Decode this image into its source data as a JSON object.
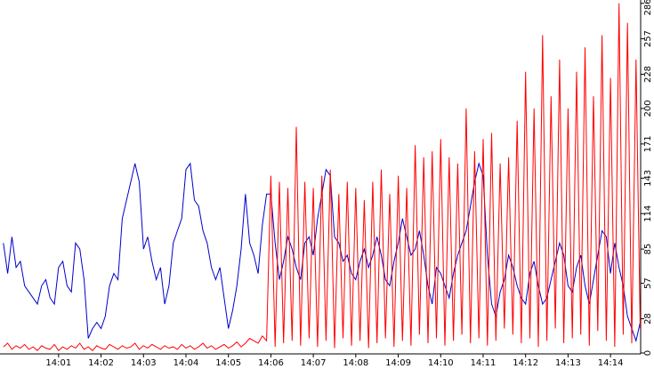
{
  "chart_data": {
    "type": "line",
    "x": [
      -0.3,
      -0.2,
      -0.1,
      0,
      0.1,
      0.2,
      0.3,
      0.4,
      0.5,
      0.6,
      0.7,
      0.8,
      0.9,
      1,
      1.1,
      1.2,
      1.3,
      1.4,
      1.5,
      1.6,
      1.7,
      1.8,
      1.9,
      2,
      2.1,
      2.2,
      2.3,
      2.4,
      2.5,
      2.6,
      2.7,
      2.8,
      2.9,
      3,
      3.1,
      3.2,
      3.3,
      3.4,
      3.5,
      3.6,
      3.7,
      3.8,
      3.9,
      4,
      4.1,
      4.2,
      4.3,
      4.4,
      4.5,
      4.6,
      4.7,
      4.8,
      4.9,
      5,
      5.1,
      5.2,
      5.3,
      5.4,
      5.5,
      5.6,
      5.7,
      5.8,
      5.9,
      6,
      6.1,
      6.2,
      6.3,
      6.4,
      6.5,
      6.6,
      6.7,
      6.8,
      6.9,
      7,
      7.1,
      7.2,
      7.3,
      7.4,
      7.5,
      7.6,
      7.7,
      7.8,
      7.9,
      8,
      8.1,
      8.2,
      8.3,
      8.4,
      8.5,
      8.6,
      8.7,
      8.8,
      8.9,
      9,
      9.1,
      9.2,
      9.3,
      9.4,
      9.5,
      9.6,
      9.7,
      9.8,
      9.9,
      10,
      10.1,
      10.2,
      10.3,
      10.4,
      10.5,
      10.6,
      10.7,
      10.8,
      10.9,
      11,
      11.1,
      11.2,
      11.3,
      11.4,
      11.5,
      11.6,
      11.7,
      11.8,
      11.9,
      12,
      12.1,
      12.2,
      12.3,
      12.4,
      12.5,
      12.6,
      12.7,
      12.8,
      12.9,
      13,
      13.1,
      13.2,
      13.3,
      13.4,
      13.5,
      13.6,
      13.7,
      13.8,
      13.9,
      14,
      14.1,
      14.2,
      14.3,
      14.4,
      14.5,
      14.6,
      14.7
    ],
    "series": [
      {
        "color": "#0000cc",
        "values": [
          90,
          65,
          95,
          70,
          75,
          55,
          50,
          45,
          40,
          55,
          60,
          45,
          40,
          70,
          75,
          55,
          50,
          90,
          85,
          60,
          12,
          20,
          25,
          20,
          30,
          55,
          65,
          60,
          110,
          125,
          140,
          155,
          140,
          85,
          95,
          75,
          60,
          70,
          40,
          55,
          90,
          100,
          110,
          150,
          155,
          125,
          120,
          100,
          90,
          70,
          60,
          70,
          45,
          20,
          35,
          55,
          85,
          130,
          90,
          80,
          65,
          105,
          130,
          130,
          90,
          60,
          75,
          95,
          85,
          70,
          60,
          90,
          95,
          80,
          110,
          130,
          150,
          145,
          95,
          90,
          75,
          80,
          65,
          60,
          75,
          85,
          70,
          80,
          95,
          80,
          60,
          55,
          75,
          90,
          110,
          95,
          80,
          85,
          100,
          80,
          55,
          40,
          70,
          65,
          55,
          45,
          65,
          80,
          90,
          100,
          120,
          140,
          155,
          145,
          80,
          40,
          30,
          50,
          60,
          80,
          70,
          55,
          45,
          40,
          65,
          75,
          55,
          40,
          45,
          60,
          75,
          90,
          80,
          55,
          50,
          70,
          80,
          55,
          40,
          60,
          80,
          100,
          95,
          65,
          90,
          70,
          55,
          30,
          20,
          10,
          25
        ]
      },
      {
        "color": "#ff0000",
        "values": [
          5,
          8,
          3,
          6,
          4,
          7,
          3,
          5,
          2,
          6,
          4,
          3,
          7,
          2,
          5,
          3,
          6,
          4,
          8,
          3,
          5,
          2,
          6,
          4,
          3,
          7,
          5,
          3,
          6,
          4,
          5,
          8,
          3,
          6,
          4,
          7,
          5,
          3,
          6,
          4,
          5,
          3,
          7,
          4,
          6,
          3,
          5,
          8,
          4,
          6,
          3,
          5,
          7,
          4,
          6,
          9,
          5,
          8,
          12,
          10,
          8,
          14,
          10,
          145,
          5,
          140,
          8,
          135,
          10,
          185,
          6,
          140,
          12,
          135,
          5,
          145,
          10,
          150,
          4,
          130,
          12,
          140,
          6,
          135,
          10,
          125,
          4,
          140,
          8,
          150,
          12,
          130,
          5,
          145,
          10,
          135,
          6,
          170,
          15,
          160,
          8,
          165,
          12,
          175,
          6,
          160,
          10,
          155,
          15,
          200,
          8,
          165,
          12,
          175,
          6,
          180,
          10,
          155,
          20,
          160,
          15,
          190,
          8,
          230,
          12,
          200,
          5,
          260,
          10,
          210,
          20,
          240,
          8,
          200,
          12,
          230,
          15,
          250,
          6,
          210,
          18,
          260,
          10,
          225,
          5,
          286,
          15,
          270,
          8,
          240,
          20
        ]
      }
    ],
    "xlim": [
      -0.38,
      14.71
    ],
    "xticks": [
      {
        "value": 1,
        "label": "14:01"
      },
      {
        "value": 2,
        "label": "14:02"
      },
      {
        "value": 3,
        "label": "14:03"
      },
      {
        "value": 4,
        "label": "14:04"
      },
      {
        "value": 5,
        "label": "14:05"
      },
      {
        "value": 6,
        "label": "14:06"
      },
      {
        "value": 7,
        "label": "14:07"
      },
      {
        "value": 8,
        "label": "14:08"
      },
      {
        "value": 9,
        "label": "14:09"
      },
      {
        "value": 10,
        "label": "14:10"
      },
      {
        "value": 11,
        "label": "14:11"
      },
      {
        "value": 12,
        "label": "14:12"
      },
      {
        "value": 13,
        "label": "14:13"
      },
      {
        "value": 14,
        "label": "14:14"
      }
    ],
    "ylim": [
      0,
      288
    ],
    "yticks": [
      0,
      28,
      57,
      85,
      114,
      143,
      171,
      200,
      228,
      257,
      286
    ],
    "grid": false
  }
}
